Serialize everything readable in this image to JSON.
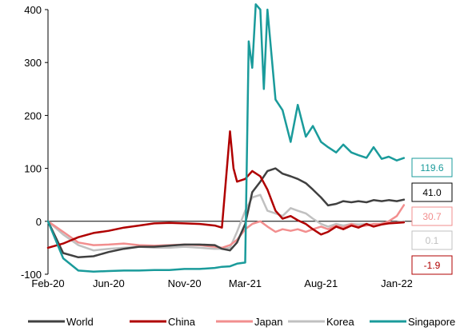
{
  "chart_data": {
    "type": "line",
    "title": "",
    "xlabel": "",
    "ylabel": "",
    "ylim": [
      -100,
      400
    ],
    "yticks": [
      -100,
      0,
      100,
      200,
      300,
      400
    ],
    "x_range": [
      "2020-02",
      "2022-02"
    ],
    "x_tick_labels": [
      {
        "label": "Feb-20",
        "date": "2020-02"
      },
      {
        "label": "Jun-20",
        "date": "2020-06"
      },
      {
        "label": "Nov-20",
        "date": "2020-11"
      },
      {
        "label": "Mar-21",
        "date": "2021-03"
      },
      {
        "label": "Aug-21",
        "date": "2021-08"
      },
      {
        "label": "Jan-22",
        "date": "2022-01"
      }
    ],
    "grid": false,
    "zero_line": true,
    "legend_position": "bottom",
    "series": [
      {
        "name": "World",
        "color": "#404040",
        "end_label": "41.0",
        "end_label_color": "#000000",
        "x": [
          "2020-02",
          "2020-03",
          "2020-04",
          "2020-05",
          "2020-06",
          "2020-07",
          "2020-08",
          "2020-09",
          "2020-10",
          "2020-11",
          "2020-12",
          "2021-01",
          "2021-01-15",
          "2021-02",
          "2021-02-15",
          "2021-03",
          "2021-03-15",
          "2021-04",
          "2021-04-15",
          "2021-05",
          "2021-05-15",
          "2021-06",
          "2021-06-15",
          "2021-07",
          "2021-07-15",
          "2021-08",
          "2021-08-15",
          "2021-09",
          "2021-09-15",
          "2021-10",
          "2021-10-15",
          "2021-11",
          "2021-11-15",
          "2021-12",
          "2021-12-15",
          "2022-01",
          "2022-01-15"
        ],
        "y": [
          0,
          -60,
          -68,
          -66,
          -58,
          -52,
          -48,
          -48,
          -46,
          -44,
          -44,
          -45,
          -52,
          -55,
          -40,
          -5,
          55,
          75,
          95,
          100,
          90,
          85,
          80,
          72,
          60,
          45,
          30,
          33,
          38,
          36,
          38,
          36,
          40,
          38,
          40,
          38,
          41.0
        ]
      },
      {
        "name": "China",
        "color": "#b00000",
        "end_label": "-1.9",
        "end_label_color": "#b00000",
        "x": [
          "2020-02",
          "2020-03",
          "2020-04",
          "2020-05",
          "2020-06",
          "2020-07",
          "2020-08",
          "2020-09",
          "2020-10",
          "2020-11",
          "2020-12",
          "2021-01",
          "2021-01-15",
          "2021-02",
          "2021-02-08",
          "2021-02-15",
          "2021-03",
          "2021-03-15",
          "2021-04",
          "2021-04-15",
          "2021-05",
          "2021-05-15",
          "2021-06",
          "2021-06-15",
          "2021-07",
          "2021-07-15",
          "2021-08",
          "2021-08-15",
          "2021-09",
          "2021-09-15",
          "2021-10",
          "2021-10-15",
          "2021-11",
          "2021-11-15",
          "2021-12",
          "2021-12-15",
          "2022-01",
          "2022-01-15"
        ],
        "y": [
          -50,
          -42,
          -30,
          -22,
          -18,
          -12,
          -8,
          -4,
          -3,
          -4,
          -5,
          -8,
          -12,
          170,
          100,
          75,
          80,
          95,
          85,
          60,
          20,
          5,
          10,
          2,
          -5,
          -15,
          -25,
          -20,
          -10,
          -15,
          -8,
          -12,
          -5,
          -10,
          -6,
          -4,
          -3,
          -1.9
        ]
      },
      {
        "name": "Japan",
        "color": "#f28e8e",
        "end_label": "30.7",
        "end_label_color": "#f28e8e",
        "x": [
          "2020-02",
          "2020-03",
          "2020-04",
          "2020-05",
          "2020-06",
          "2020-07",
          "2020-08",
          "2020-09",
          "2020-10",
          "2020-11",
          "2020-12",
          "2021-01",
          "2021-01-15",
          "2021-02",
          "2021-02-15",
          "2021-03",
          "2021-03-15",
          "2021-04",
          "2021-04-15",
          "2021-05",
          "2021-05-15",
          "2021-06",
          "2021-06-15",
          "2021-07",
          "2021-07-15",
          "2021-08",
          "2021-08-15",
          "2021-09",
          "2021-09-15",
          "2021-10",
          "2021-10-15",
          "2021-11",
          "2021-11-15",
          "2021-12",
          "2021-12-15",
          "2022-01",
          "2022-01-15"
        ],
        "y": [
          0,
          -20,
          -40,
          -45,
          -44,
          -42,
          -45,
          -46,
          -45,
          -44,
          -45,
          -48,
          -50,
          -45,
          -35,
          -15,
          -5,
          0,
          -10,
          -20,
          -15,
          -18,
          -15,
          -20,
          -15,
          -10,
          -15,
          -8,
          -12,
          -5,
          -10,
          -8,
          -5,
          -5,
          0,
          10,
          30.7
        ]
      },
      {
        "name": "Korea",
        "color": "#c0c0c0",
        "end_label": "0.1",
        "end_label_color": "#c0c0c0",
        "x": [
          "2020-02",
          "2020-03",
          "2020-04",
          "2020-05",
          "2020-06",
          "2020-07",
          "2020-08",
          "2020-09",
          "2020-10",
          "2020-11",
          "2020-12",
          "2021-01",
          "2021-01-15",
          "2021-02",
          "2021-02-15",
          "2021-03",
          "2021-03-15",
          "2021-04",
          "2021-04-15",
          "2021-05",
          "2021-05-15",
          "2021-06",
          "2021-06-15",
          "2021-07",
          "2021-07-15",
          "2021-08",
          "2021-08-15",
          "2021-09",
          "2021-09-15",
          "2021-10",
          "2021-10-15",
          "2021-11",
          "2021-11-15",
          "2021-12",
          "2021-12-15",
          "2022-01",
          "2022-01-15"
        ],
        "y": [
          0,
          -25,
          -45,
          -55,
          -52,
          -50,
          -48,
          -50,
          -50,
          -48,
          -50,
          -52,
          -52,
          -50,
          -20,
          20,
          45,
          50,
          20,
          15,
          10,
          25,
          20,
          15,
          5,
          -5,
          -10,
          -5,
          -8,
          -5,
          -6,
          -5,
          -8,
          -4,
          -3,
          -2,
          0.1
        ]
      },
      {
        "name": "Singapore",
        "color": "#1a9b9b",
        "end_label": "119.6",
        "end_label_color": "#1a9b9b",
        "x": [
          "2020-02",
          "2020-03",
          "2020-04",
          "2020-05",
          "2020-06",
          "2020-07",
          "2020-08",
          "2020-09",
          "2020-10",
          "2020-11",
          "2020-12",
          "2021-01",
          "2021-01-15",
          "2021-02",
          "2021-02-15",
          "2021-03",
          "2021-03-08",
          "2021-03-15",
          "2021-03-22",
          "2021-04",
          "2021-04-08",
          "2021-04-15",
          "2021-05",
          "2021-05-15",
          "2021-06",
          "2021-06-15",
          "2021-07",
          "2021-07-15",
          "2021-08",
          "2021-08-15",
          "2021-09",
          "2021-09-15",
          "2021-10",
          "2021-10-15",
          "2021-11",
          "2021-11-15",
          "2021-12",
          "2021-12-15",
          "2022-01",
          "2022-01-15"
        ],
        "y": [
          0,
          -70,
          -93,
          -95,
          -94,
          -93,
          -93,
          -92,
          -92,
          -90,
          -90,
          -88,
          -86,
          -85,
          -80,
          -78,
          340,
          290,
          410,
          400,
          250,
          400,
          230,
          210,
          150,
          220,
          160,
          180,
          150,
          140,
          130,
          145,
          130,
          125,
          120,
          140,
          118,
          122,
          115,
          119.6
        ]
      }
    ]
  }
}
